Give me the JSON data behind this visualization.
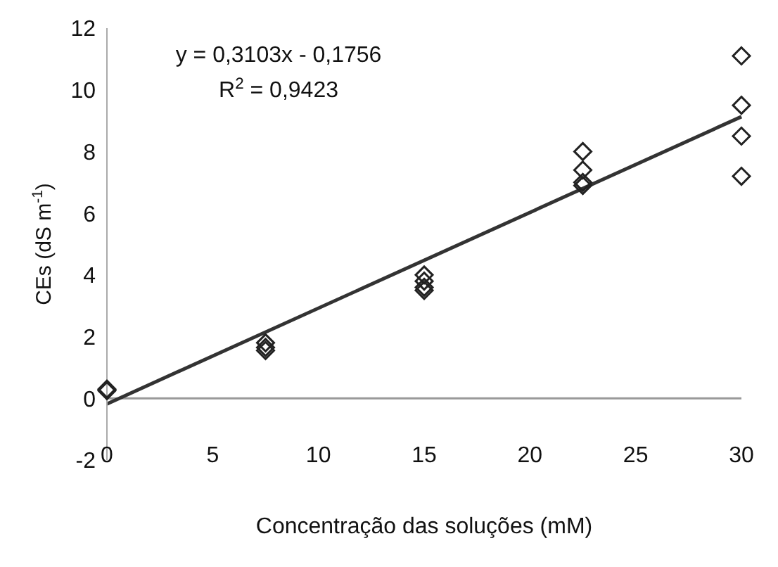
{
  "chart_data": {
    "type": "scatter",
    "xlabel": "Concentração das soluções (mM)",
    "ylabel": "CEs (dS m$^{-1}$)",
    "annotations": [
      "y = 0,3103x - 0,1756",
      "R$^{2}$ = 0,9423"
    ],
    "series": [
      {
        "color": "#222222",
        "marker": "diamond",
        "x": [
          0,
          0,
          7.5,
          7.5,
          7.5,
          15,
          15,
          15,
          15,
          22.5,
          22.5,
          22.5,
          22.5,
          30,
          30,
          30,
          30
        ],
        "values": [
          0.3,
          0.25,
          1.8,
          1.65,
          1.55,
          4.0,
          3.8,
          3.6,
          3.5,
          8.0,
          7.4,
          7.0,
          6.9,
          11.1,
          9.5,
          8.5,
          7.2
        ]
      },
      {
        "type": "line",
        "color": "#333333",
        "marker": "none",
        "x": [
          0,
          30
        ],
        "values": [
          -0.18,
          9.13
        ]
      }
    ],
    "xlim": [
      0,
      30
    ],
    "xticks": [
      0,
      5,
      10,
      15,
      20,
      25,
      30
    ],
    "ylim": [
      -2,
      12
    ],
    "yticks": [
      -2,
      0,
      2,
      4,
      6,
      8,
      10,
      12
    ],
    "grid": false,
    "legend": false
  }
}
